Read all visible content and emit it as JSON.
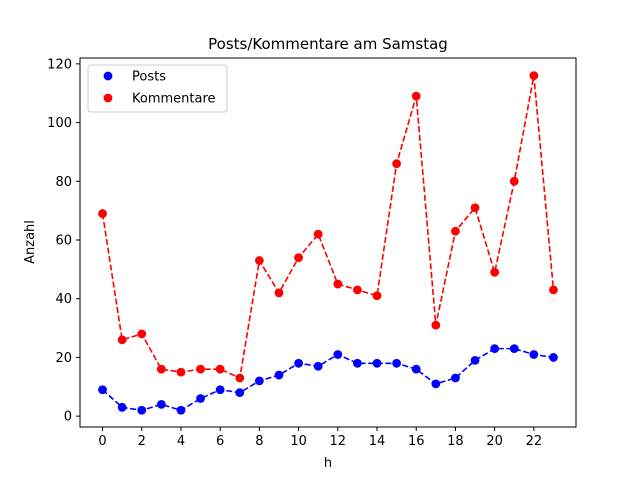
{
  "chart_data": {
    "type": "line",
    "title": "Posts/Kommentare am Samstag",
    "xlabel": "h",
    "ylabel": "Anzahl",
    "x": [
      0,
      1,
      2,
      3,
      4,
      5,
      6,
      7,
      8,
      9,
      10,
      11,
      12,
      13,
      14,
      15,
      16,
      17,
      18,
      19,
      20,
      21,
      22,
      23
    ],
    "xlim": [
      -1.15,
      24.15
    ],
    "ylim": [
      -3.7,
      122.0
    ],
    "xticks": [
      0,
      2,
      4,
      6,
      8,
      10,
      12,
      14,
      16,
      18,
      20,
      22
    ],
    "xtick_labels": [
      "0",
      "2",
      "4",
      "6",
      "8",
      "10",
      "12",
      "14",
      "16",
      "18",
      "20",
      "22"
    ],
    "yticks": [
      0,
      20,
      40,
      60,
      80,
      100,
      120
    ],
    "ytick_labels": [
      "0",
      "20",
      "40",
      "60",
      "80",
      "100",
      "120"
    ],
    "grid": false,
    "legend_position": "top-left",
    "series": [
      {
        "name": "Posts",
        "color": "#0000ff",
        "values": [
          9,
          3,
          2,
          4,
          2,
          6,
          9,
          8,
          12,
          14,
          18,
          17,
          21,
          18,
          18,
          18,
          16,
          11,
          13,
          19,
          23,
          23,
          21,
          20
        ]
      },
      {
        "name": "Kommentare",
        "color": "#ff0000",
        "values": [
          69,
          26,
          28,
          16,
          15,
          16,
          16,
          13,
          53,
          42,
          54,
          62,
          45,
          43,
          41,
          86,
          109,
          31,
          63,
          71,
          49,
          80,
          116,
          43
        ]
      }
    ]
  }
}
